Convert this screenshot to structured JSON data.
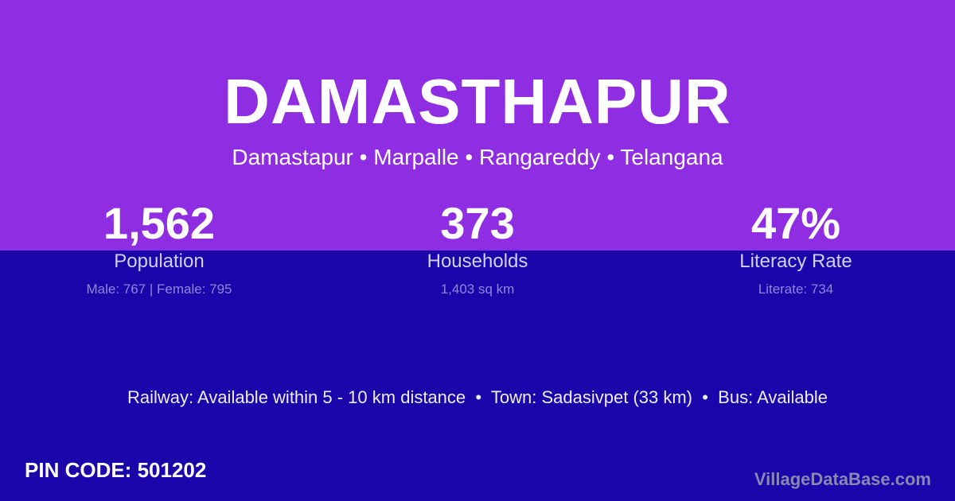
{
  "colors": {
    "top_bg": "#8e2de2",
    "bottom_bg": "#1a04aa",
    "brand": "#8a87b4"
  },
  "header": {
    "title": "DAMASTHAPUR",
    "subtitle": "Damastapur • Marpalle • Rangareddy • Telangana"
  },
  "stats": [
    {
      "value": "1,562",
      "label": "Population",
      "detail": "Male: 767 | Female: 795"
    },
    {
      "value": "373",
      "label": "Households",
      "detail": "1,403 sq km"
    },
    {
      "value": "47%",
      "label": "Literacy Rate",
      "detail": "Literate: 734"
    }
  ],
  "transport": "Railway: Available within 5 - 10 km distance  •  Town: Sadasivpet (33 km)  •  Bus: Available",
  "pin": "PIN CODE: 501202",
  "brand": "VillageDataBase.com"
}
